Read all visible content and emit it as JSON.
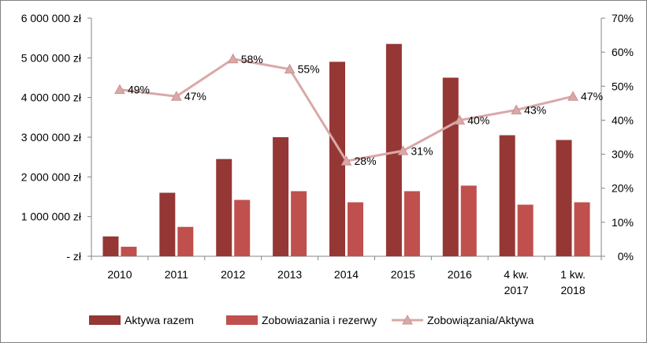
{
  "chart_data": {
    "type": "bar",
    "title": "",
    "categories": [
      [
        "2010"
      ],
      [
        "2011"
      ],
      [
        "2012"
      ],
      [
        "2013"
      ],
      [
        "2014"
      ],
      [
        "2015"
      ],
      [
        "2016"
      ],
      [
        "4 kw.",
        "2017"
      ],
      [
        "1 kw.",
        "2018"
      ]
    ],
    "left_axis": {
      "ylim": [
        0,
        6000000
      ],
      "tick_labels": [
        "-  zł",
        "1 000 000 zł",
        "2 000 000 zł",
        "3 000 000 zł",
        "4 000 000 zł",
        "5 000 000 zł",
        "6 000 000 zł"
      ],
      "tick_values": [
        0,
        1000000,
        2000000,
        3000000,
        4000000,
        5000000,
        6000000
      ]
    },
    "right_axis": {
      "ylim": [
        0,
        70
      ],
      "tick_labels": [
        "0%",
        "10%",
        "20%",
        "30%",
        "40%",
        "50%",
        "60%",
        "70%"
      ],
      "tick_values": [
        0,
        10,
        20,
        30,
        40,
        50,
        60,
        70
      ]
    },
    "series": [
      {
        "name": "Aktywa razem",
        "type": "bar",
        "axis": "left",
        "color": "#953735",
        "values": [
          500000,
          1600000,
          2450000,
          3000000,
          4900000,
          5350000,
          4500000,
          3050000,
          2930000
        ]
      },
      {
        "name": "Zobowiazania i rezerwy",
        "type": "bar",
        "axis": "left",
        "color": "#C0504D",
        "values": [
          240000,
          740000,
          1420000,
          1640000,
          1360000,
          1640000,
          1780000,
          1300000,
          1360000
        ]
      },
      {
        "name": "Zobowiązania/Aktywa",
        "type": "line",
        "axis": "right",
        "color": "#D9A9A8",
        "marker": "triangle",
        "values": [
          49,
          47,
          58,
          55,
          28,
          31,
          40,
          43,
          47
        ],
        "data_labels": [
          "49%",
          "47%",
          "58%",
          "55%",
          "28%",
          "31%",
          "40%",
          "43%",
          "47%"
        ]
      }
    ],
    "grid": false,
    "legend_position": "bottom"
  }
}
